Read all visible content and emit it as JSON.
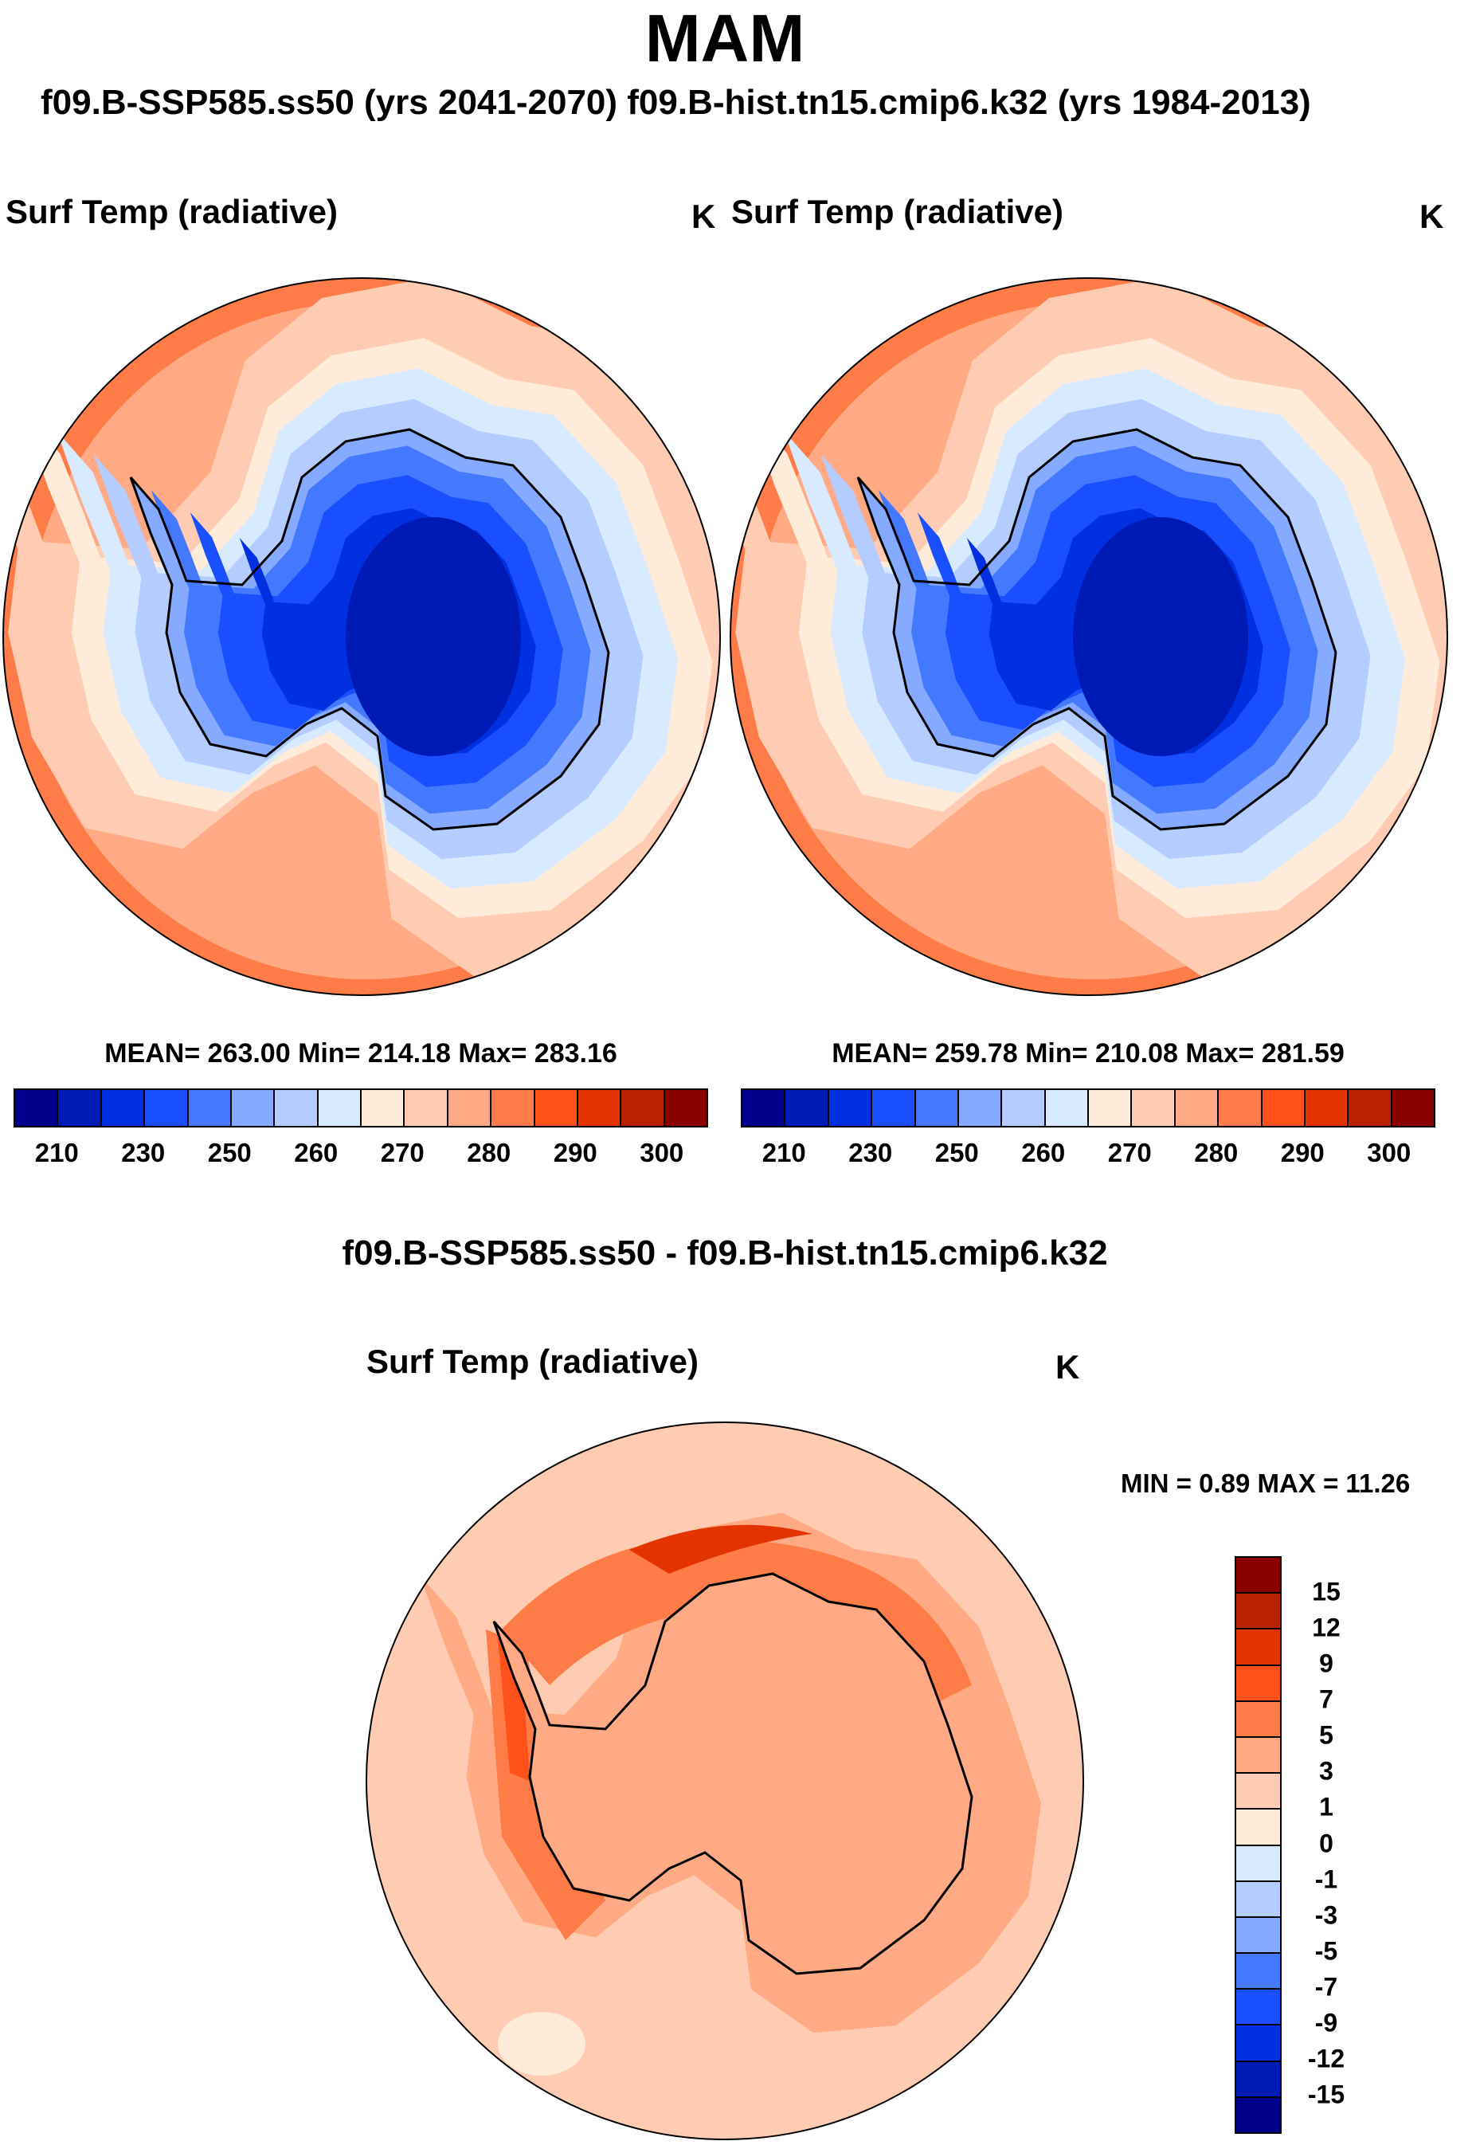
{
  "title": "MAM",
  "subtitle": "f09.B-SSP585.ss50 (yrs 2041-2070)  f09.B-hist.tn15.cmip6.k32 (yrs 1984-2013)",
  "chart_data": [
    {
      "type": "heatmap",
      "projection": "south-polar-stereographic",
      "case": "f09.B-SSP585.ss50 (yrs 2041-2070)",
      "title": "Surf Temp (radiative)",
      "units": "K",
      "stats": "MEAN= 263.00  Min= 214.18  Max= 283.16",
      "mean": 263.0,
      "min": 214.18,
      "max": 283.16,
      "colorbar_labels": [
        "210",
        "230",
        "250",
        "260",
        "270",
        "280",
        "290",
        "300"
      ]
    },
    {
      "type": "heatmap",
      "projection": "south-polar-stereographic",
      "case": "f09.B-hist.tn15.cmip6.k32 (yrs 1984-2013)",
      "title": "Surf Temp (radiative)",
      "units": "K",
      "stats": "MEAN= 259.78  Min= 210.08  Max= 281.59",
      "mean": 259.78,
      "min": 210.08,
      "max": 281.59,
      "colorbar_labels": [
        "210",
        "230",
        "250",
        "260",
        "270",
        "280",
        "290",
        "300"
      ]
    },
    {
      "type": "heatmap",
      "projection": "south-polar-stereographic",
      "case_title": "f09.B-SSP585.ss50 - f09.B-hist.tn15.cmip6.k32",
      "title": "Surf Temp (radiative)",
      "units": "K",
      "stats": "MIN =   0.89 MAX =  11.26",
      "min": 0.89,
      "max": 11.26,
      "colorbar_labels": [
        "15",
        "12",
        "9",
        "7",
        "5",
        "3",
        "1",
        "0",
        "-1",
        "-3",
        "-5",
        "-7",
        "-9",
        "-12",
        "-15"
      ]
    }
  ],
  "colors": [
    "#00008A",
    "#001BB5",
    "#0030E0",
    "#1A4FFF",
    "#4478FF",
    "#85AAFF",
    "#B4CCFF",
    "#D8EAFF",
    "#FFEBDA",
    "#FFCCB3",
    "#FFAA85",
    "#FF7B47",
    "#FF5119",
    "#E33400",
    "#B82200",
    "#8A0000"
  ]
}
